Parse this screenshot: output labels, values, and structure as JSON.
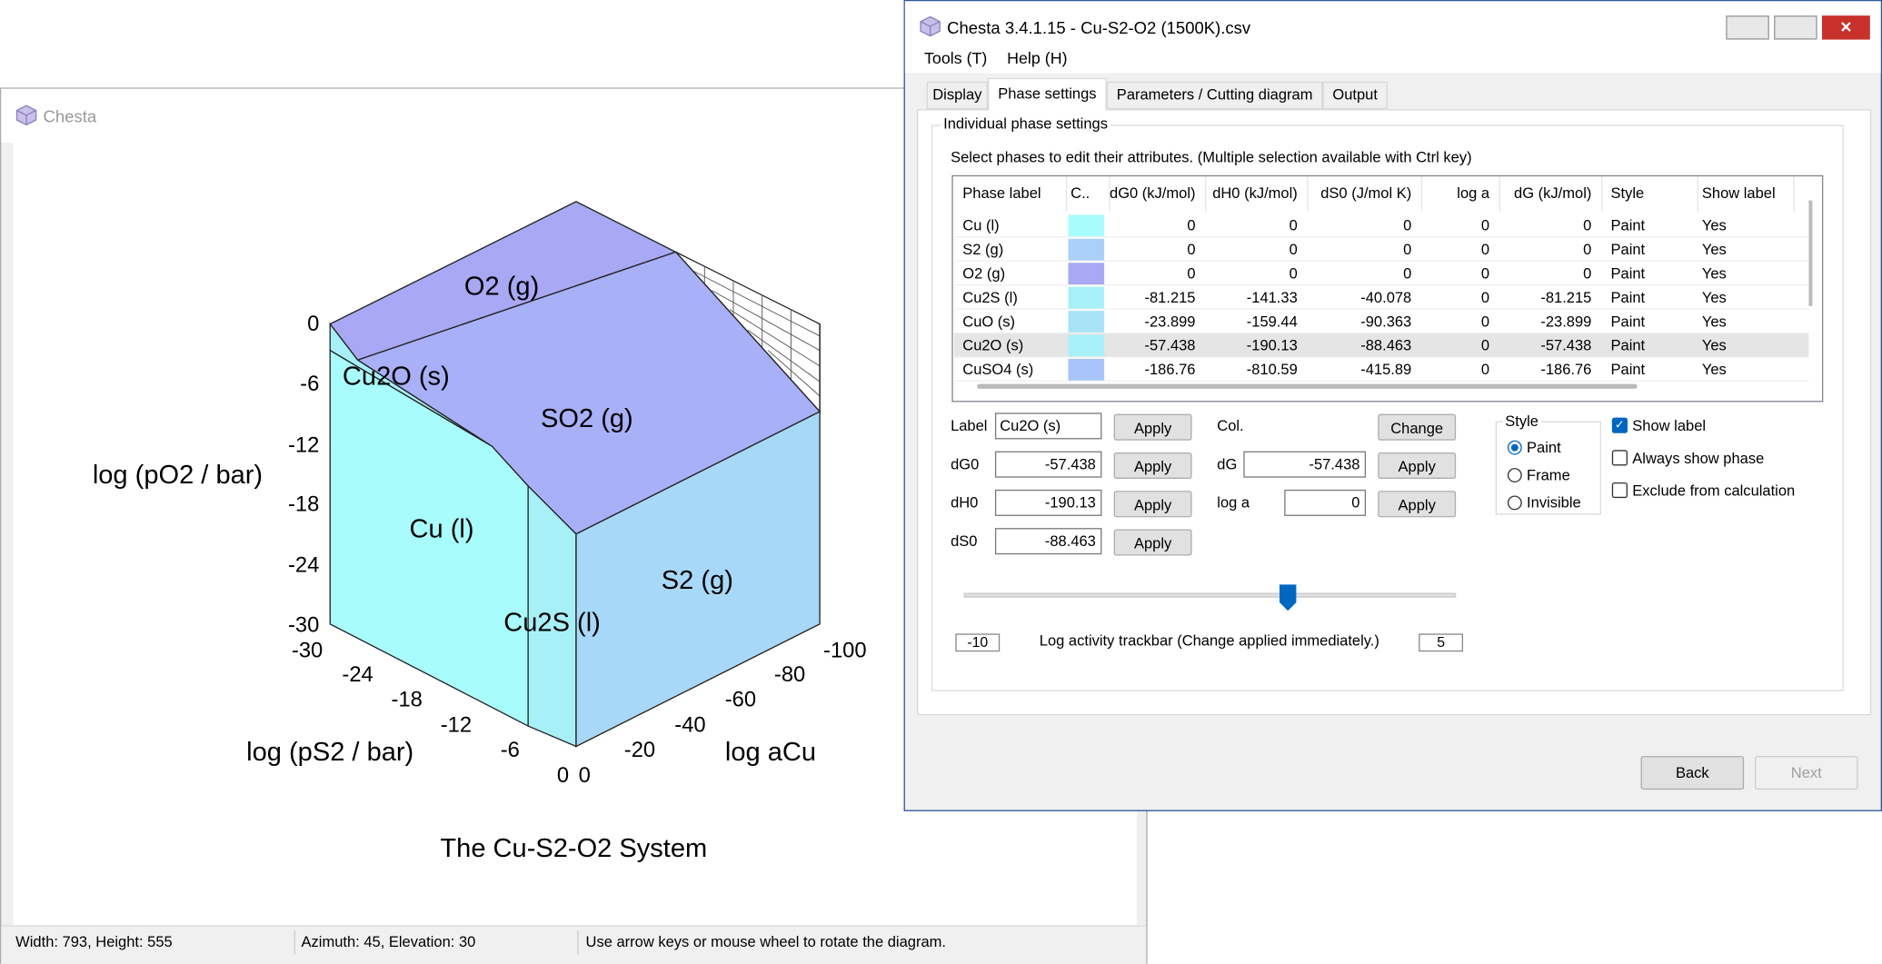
{
  "diagram_window": {
    "title": "Chesta",
    "phase_labels": [
      "O2 (g)",
      "Cu2O (s)",
      "SO2 (g)",
      "Cu (l)",
      "Cu2S (l)",
      "S2 (g)"
    ],
    "z_axis": {
      "title": "log (pO2 / bar)",
      "ticks": [
        "0",
        "-6",
        "-12",
        "-18",
        "-24",
        "-30"
      ]
    },
    "x_axis": {
      "title": "log (pS2 / bar)",
      "ticks": [
        "-30",
        "-24",
        "-18",
        "-12",
        "-6",
        "0"
      ]
    },
    "y_axis": {
      "title": "log aCu",
      "ticks": [
        "0",
        "-20",
        "-40",
        "-60",
        "-80",
        "-100"
      ]
    },
    "diagram_title": "The Cu-S2-O2 System",
    "status": [
      "Width: 793, Height: 555",
      "Azimuth: 45, Elevation: 30",
      "Use arrow keys or mouse wheel to rotate the diagram."
    ]
  },
  "settings_window": {
    "title": "Chesta 3.4.1.15 - Cu-S2-O2 (1500K).csv",
    "menu": [
      "Tools (T)",
      "Help (H)"
    ],
    "tabs": [
      "Display",
      "Phase settings",
      "Parameters / Cutting diagram",
      "Output"
    ],
    "group": "Individual phase settings",
    "instruction": "Select phases to edit their attributes.  (Multiple selection available with Ctrl key)",
    "table": {
      "headers": [
        "Phase label",
        "C..",
        "dG0 (kJ/mol)",
        "dH0 (kJ/mol)",
        "dS0 (J/mol K)",
        "log a",
        "dG  (kJ/mol)",
        "Style",
        "Show label"
      ],
      "rows": [
        [
          "Cu (l)",
          "",
          0,
          0,
          0,
          0,
          0,
          "Paint",
          "Yes"
        ],
        [
          "S2 (g)",
          "",
          0,
          0,
          0,
          0,
          0,
          "Paint",
          "Yes"
        ],
        [
          "O2 (g)",
          "",
          0,
          0,
          0,
          0,
          0,
          "Paint",
          "Yes"
        ],
        [
          "Cu2S (l)",
          "",
          -81.215,
          -141.33,
          -40.078,
          0,
          -81.215,
          "Paint",
          "Yes"
        ],
        [
          "CuO (s)",
          "",
          -23.899,
          -159.44,
          -90.363,
          0,
          -23.899,
          "Paint",
          "Yes"
        ],
        [
          "Cu2O (s)",
          "",
          -57.438,
          -190.13,
          -88.463,
          0,
          -57.438,
          "Paint",
          "Yes"
        ],
        [
          "CuSO4 (s)",
          "",
          -186.76,
          -810.59,
          -415.89,
          0,
          -186.76,
          "Paint",
          "Yes"
        ]
      ],
      "swatch_colors": [
        "#a8fcfc",
        "#a8d0f8",
        "#a8a8f4",
        "#a8f0f8",
        "#a8e4f8",
        "#a8f0f8",
        "#a8c4f8"
      ]
    },
    "form": {
      "label_caption": "Label",
      "label_value": "Cu2O (s)",
      "dG0_caption": "dG0",
      "dG0_value": "-57.438",
      "dH0_caption": "dH0",
      "dH0_value": "-190.13",
      "dS0_caption": "dS0",
      "dS0_value": "-88.463",
      "col_caption": "Col.",
      "change": "Change",
      "dG_caption": "dG",
      "dG_value": "-57.438",
      "loga_caption": "log a",
      "loga_value": "0",
      "apply": "Apply"
    },
    "style_group": {
      "title": "Style",
      "options": [
        "Paint",
        "Frame",
        "Invisible"
      ]
    },
    "checkboxes": [
      "Show label",
      "Always show phase",
      "Exclude from calculation"
    ],
    "trackbar": {
      "min": "-10",
      "caption": "Log activity trackbar (Change applied immediately.)",
      "max": "5"
    },
    "buttons": [
      "Back",
      "Next"
    ]
  }
}
